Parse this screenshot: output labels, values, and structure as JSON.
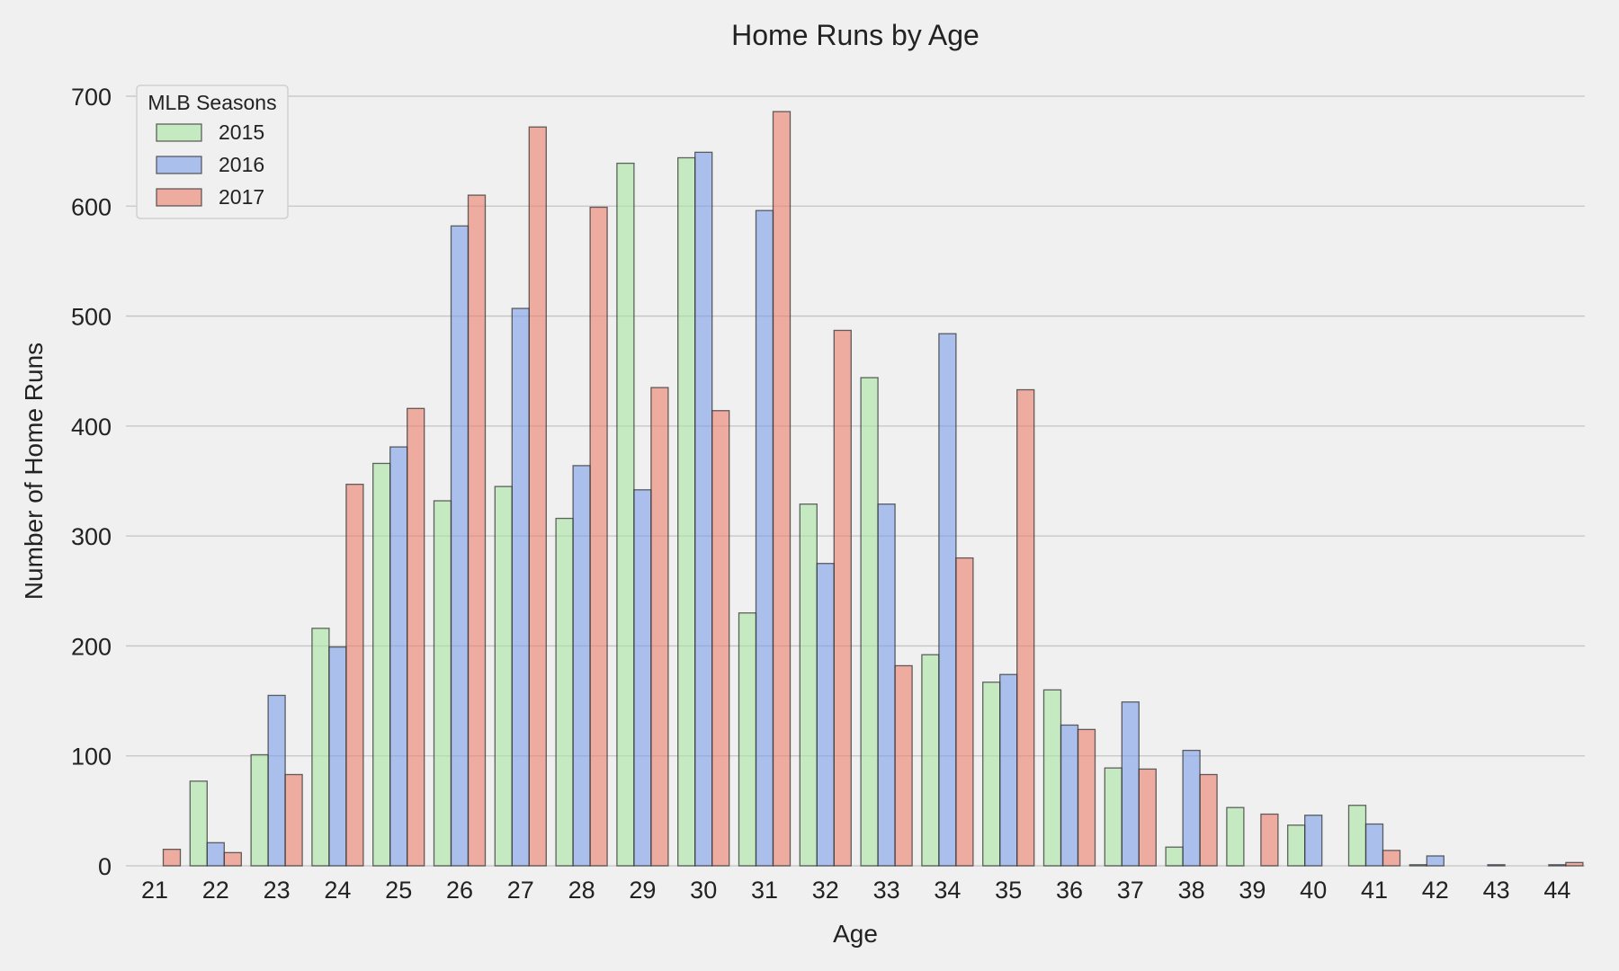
{
  "chart_data": {
    "type": "bar",
    "title": "Home Runs by Age",
    "xlabel": "Age",
    "ylabel": "Number of Home Runs",
    "ylim": [
      0,
      700
    ],
    "yticks": [
      0,
      100,
      200,
      300,
      400,
      500,
      600,
      700
    ],
    "grid": "horizontal",
    "legend": {
      "title": "MLB Seasons",
      "placement": "top-left"
    },
    "categories": [
      "21",
      "22",
      "23",
      "24",
      "25",
      "26",
      "27",
      "28",
      "29",
      "30",
      "31",
      "32",
      "33",
      "34",
      "35",
      "36",
      "37",
      "38",
      "39",
      "40",
      "41",
      "42",
      "43",
      "44"
    ],
    "series": [
      {
        "name": "2015",
        "color": "#a8e6a1",
        "values": [
          0,
          77,
          101,
          216,
          366,
          332,
          345,
          316,
          639,
          644,
          230,
          329,
          444,
          192,
          167,
          160,
          89,
          17,
          53,
          37,
          55,
          1,
          0,
          0
        ]
      },
      {
        "name": "2016",
        "color": "#7b9fe8",
        "values": [
          0,
          21,
          155,
          199,
          381,
          582,
          507,
          364,
          342,
          649,
          596,
          275,
          329,
          484,
          174,
          128,
          149,
          105,
          0,
          46,
          38,
          9,
          1,
          1
        ]
      },
      {
        "name": "2017",
        "color": "#ec7f6c",
        "values": [
          15,
          12,
          83,
          347,
          416,
          610,
          672,
          599,
          435,
          414,
          686,
          487,
          182,
          280,
          433,
          124,
          88,
          83,
          47,
          0,
          14,
          0,
          0,
          3
        ]
      }
    ]
  }
}
